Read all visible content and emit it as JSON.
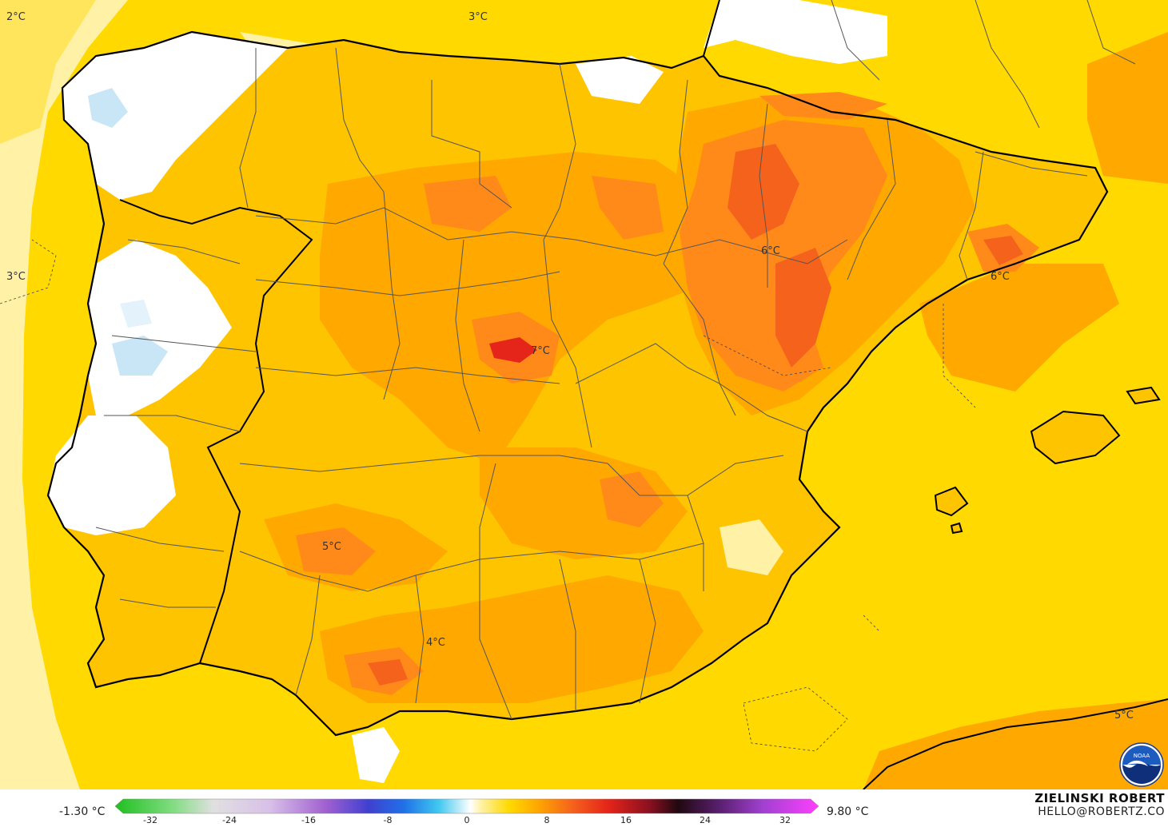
{
  "map": {
    "temp_labels": [
      "2°C",
      "3°C",
      "3°C",
      "7°C",
      "6°C",
      "6°C",
      "5°C",
      "4°C",
      "5°C"
    ]
  },
  "legend": {
    "min": "-1.30 °C",
    "max": "9.80 °C",
    "ticks": [
      "-32",
      "-24",
      "-16",
      "-8",
      "0",
      "8",
      "16",
      "24",
      "32"
    ]
  },
  "branding": {
    "name": "ZIELINSKI ROBERT",
    "email": "HELLO@ROBERTZ.CO",
    "logo": "noaa-logo-icon"
  },
  "colors": {
    "sea_base": "#ffd900",
    "land_base": "#ffc400",
    "warm": "#ffa800",
    "warmer": "#ff8a1a",
    "hot": "#f5621c",
    "hottest": "#e5251a",
    "cold_white": "#ffffff",
    "cold_blue": "#c9e6f7"
  }
}
